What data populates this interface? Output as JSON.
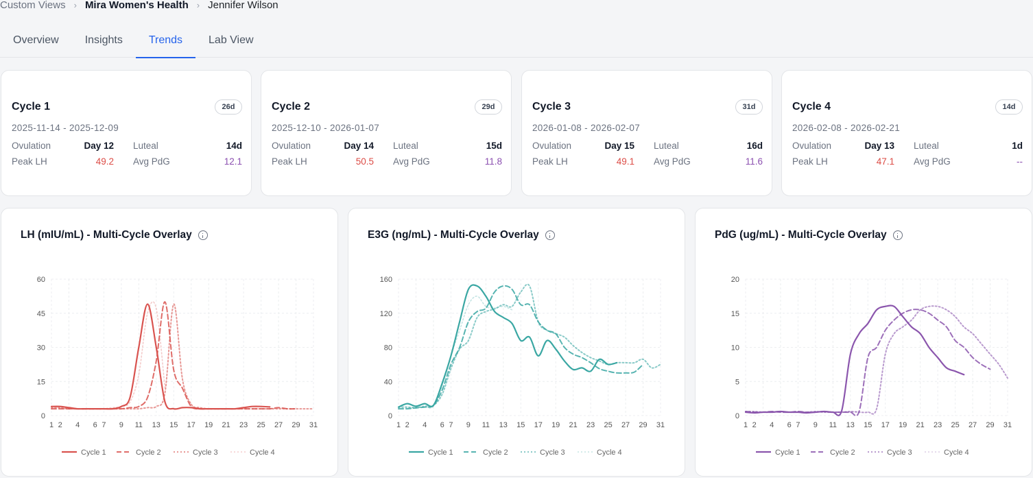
{
  "breadcrumb": {
    "items": [
      "Custom Views",
      "Mira Women's Health",
      "Jennifer Wilson"
    ]
  },
  "tabs": [
    "Overview",
    "Insights",
    "Trends",
    "Lab View"
  ],
  "active_tab": "Trends",
  "colors": {
    "accent": "#2563eb",
    "lh": "#d9534f",
    "e3g": "#3aa7a3",
    "pdg": "#8b56ad",
    "peak_lh_text": "#dc4c46",
    "avg_pdg_text": "#8b4fb0"
  },
  "cycles": [
    {
      "title": "Cycle 1",
      "badge": "26d",
      "range": "2025-11-14 - 2025-12-09",
      "ovulation_label": "Ovulation",
      "ovulation": "Day 12",
      "luteal_label": "Luteal",
      "luteal": "14d",
      "peak_lh_label": "Peak LH",
      "peak_lh": "49.2",
      "avg_pdg_label": "Avg PdG",
      "avg_pdg": "12.1"
    },
    {
      "title": "Cycle 2",
      "badge": "29d",
      "range": "2025-12-10 - 2026-01-07",
      "ovulation_label": "Ovulation",
      "ovulation": "Day 14",
      "luteal_label": "Luteal",
      "luteal": "15d",
      "peak_lh_label": "Peak LH",
      "peak_lh": "50.5",
      "avg_pdg_label": "Avg PdG",
      "avg_pdg": "11.8"
    },
    {
      "title": "Cycle 3",
      "badge": "31d",
      "range": "2026-01-08 - 2026-02-07",
      "ovulation_label": "Ovulation",
      "ovulation": "Day 15",
      "luteal_label": "Luteal",
      "luteal": "16d",
      "peak_lh_label": "Peak LH",
      "peak_lh": "49.1",
      "avg_pdg_label": "Avg PdG",
      "avg_pdg": "11.6"
    },
    {
      "title": "Cycle 4",
      "badge": "14d",
      "range": "2026-02-08 - 2026-02-21",
      "ovulation_label": "Ovulation",
      "ovulation": "Day 13",
      "luteal_label": "Luteal",
      "luteal": "1d",
      "peak_lh_label": "Peak LH",
      "peak_lh": "47.1",
      "avg_pdg_label": "Avg PdG",
      "avg_pdg": "--"
    }
  ],
  "chart_data": [
    {
      "type": "line",
      "title": "LH (mIU/mL) - Multi-Cycle Overlay",
      "color": "#d9534f",
      "info_icon": "info-icon",
      "grid": true,
      "legend": "bottom",
      "xlim": [
        1,
        31
      ],
      "ylim": [
        0,
        60
      ],
      "xticks": [
        1,
        2,
        4,
        6,
        7,
        9,
        11,
        13,
        15,
        17,
        19,
        21,
        23,
        25,
        27,
        29,
        31
      ],
      "yticks": [
        0,
        15,
        30,
        45,
        60
      ],
      "series": [
        {
          "name": "Cycle 1",
          "style": "solid",
          "x": [
            1,
            2,
            3,
            4,
            5,
            6,
            7,
            8,
            9,
            10,
            11,
            12,
            13,
            14,
            15,
            16,
            17,
            18,
            19,
            20,
            21,
            22,
            23,
            24,
            25,
            26
          ],
          "values": [
            4,
            4,
            3.5,
            3,
            3,
            3,
            3,
            3,
            4,
            8,
            30,
            49,
            30,
            6,
            3,
            3.5,
            3.5,
            3,
            3,
            3,
            3,
            3,
            3.5,
            4,
            4,
            3.8
          ]
        },
        {
          "name": "Cycle 2",
          "style": "dashed",
          "x": [
            1,
            2,
            3,
            4,
            5,
            6,
            7,
            8,
            9,
            10,
            11,
            12,
            13,
            14,
            15,
            16,
            17,
            18,
            19,
            20,
            21,
            22,
            23,
            24,
            25,
            26,
            27,
            28,
            29
          ],
          "values": [
            3,
            3,
            3,
            3,
            3,
            3,
            3,
            3,
            3,
            3.5,
            4,
            8,
            24,
            50,
            20,
            12,
            4,
            3,
            3,
            3,
            3,
            3,
            3,
            3,
            3,
            3,
            3.5,
            3,
            3
          ]
        },
        {
          "name": "Cycle 3",
          "style": "dotted",
          "x": [
            1,
            2,
            3,
            4,
            5,
            6,
            7,
            8,
            9,
            10,
            11,
            12,
            13,
            14,
            15,
            16,
            17,
            18,
            19,
            20,
            21,
            22,
            23,
            24,
            25,
            26,
            27,
            28,
            29,
            30,
            31
          ],
          "values": [
            3.5,
            3.5,
            3,
            3,
            3,
            3,
            3,
            3,
            3,
            3,
            3,
            3.5,
            4,
            10,
            49,
            16,
            5,
            3.5,
            3,
            3,
            3,
            3,
            3,
            3,
            3,
            3,
            3,
            3,
            3,
            3,
            3
          ]
        },
        {
          "name": "Cycle 4",
          "style": "faint-dotted",
          "x": [
            1,
            2,
            3,
            4,
            5,
            6,
            7,
            8,
            9,
            10,
            11,
            12,
            13,
            14
          ],
          "values": [
            3,
            3,
            3,
            3,
            3,
            3,
            3,
            3.5,
            4,
            6,
            18,
            45,
            47,
            12
          ]
        }
      ]
    },
    {
      "type": "line",
      "title": "E3G (ng/mL) - Multi-Cycle Overlay",
      "color": "#3aa7a3",
      "info_icon": "info-icon",
      "grid": true,
      "legend": "bottom",
      "xlim": [
        1,
        31
      ],
      "ylim": [
        0,
        160
      ],
      "xticks": [
        1,
        2,
        4,
        6,
        7,
        9,
        11,
        13,
        15,
        17,
        19,
        21,
        23,
        25,
        27,
        29,
        31
      ],
      "yticks": [
        0,
        40,
        80,
        120,
        160
      ],
      "series": [
        {
          "name": "Cycle 1",
          "style": "solid",
          "x": [
            1,
            2,
            3,
            4,
            5,
            6,
            7,
            8,
            9,
            10,
            11,
            12,
            13,
            14,
            15,
            16,
            17,
            18,
            19,
            20,
            21,
            22,
            23,
            24,
            25,
            26
          ],
          "values": [
            10,
            14,
            11,
            14,
            12,
            38,
            70,
            110,
            148,
            152,
            140,
            122,
            115,
            108,
            88,
            92,
            70,
            88,
            78,
            64,
            54,
            56,
            52,
            66,
            60,
            62
          ]
        },
        {
          "name": "Cycle 2",
          "style": "dashed",
          "x": [
            1,
            2,
            3,
            4,
            5,
            6,
            7,
            8,
            9,
            10,
            11,
            12,
            13,
            14,
            15,
            16,
            17,
            18,
            19,
            20,
            21,
            22,
            23,
            24,
            25,
            26,
            27,
            28,
            29
          ],
          "values": [
            8,
            8,
            9,
            10,
            12,
            30,
            60,
            80,
            110,
            122,
            126,
            145,
            152,
            148,
            130,
            130,
            110,
            100,
            96,
            80,
            72,
            68,
            62,
            55,
            52,
            50,
            50,
            51,
            60
          ]
        },
        {
          "name": "Cycle 3",
          "style": "dotted",
          "x": [
            1,
            2,
            3,
            4,
            5,
            6,
            7,
            8,
            9,
            10,
            11,
            12,
            13,
            14,
            15,
            16,
            17,
            18,
            19,
            20,
            21,
            22,
            23,
            24,
            25,
            26,
            27,
            28,
            29,
            30,
            31
          ],
          "values": [
            10,
            10,
            9,
            11,
            12,
            25,
            55,
            78,
            88,
            115,
            122,
            125,
            130,
            128,
            145,
            152,
            110,
            100,
            96,
            92,
            82,
            74,
            68,
            64,
            60,
            62,
            62,
            62,
            66,
            56,
            60
          ]
        },
        {
          "name": "Cycle 4",
          "style": "faint-dotted",
          "x": [
            1,
            2,
            3,
            4,
            5,
            6,
            7,
            8,
            9,
            10,
            11,
            12,
            13,
            14
          ],
          "values": [
            9,
            9,
            10,
            10,
            11,
            35,
            70,
            100,
            130,
            140,
            128,
            126,
            128,
            124
          ]
        }
      ]
    },
    {
      "type": "line",
      "title": "PdG (ug/mL) - Multi-Cycle Overlay",
      "color": "#8b56ad",
      "info_icon": "info-icon",
      "grid": true,
      "legend": "bottom",
      "xlim": [
        1,
        31
      ],
      "ylim": [
        0,
        20
      ],
      "xticks": [
        1,
        2,
        4,
        6,
        7,
        9,
        11,
        13,
        15,
        17,
        19,
        21,
        23,
        25,
        27,
        29,
        31
      ],
      "yticks": [
        0,
        5,
        10,
        15,
        20
      ],
      "series": [
        {
          "name": "Cycle 1",
          "style": "solid",
          "x": [
            1,
            2,
            3,
            4,
            5,
            6,
            7,
            8,
            9,
            10,
            11,
            12,
            13,
            14,
            15,
            16,
            17,
            18,
            19,
            20,
            21,
            22,
            23,
            24,
            25,
            26
          ],
          "values": [
            0.5,
            0.4,
            0.5,
            0.5,
            0.6,
            0.5,
            0.5,
            0.4,
            0.5,
            0.6,
            0.5,
            0.7,
            9,
            12,
            13.5,
            15.5,
            16,
            16,
            14.5,
            13,
            12,
            10,
            8.5,
            7,
            6.5,
            6
          ]
        },
        {
          "name": "Cycle 2",
          "style": "dashed",
          "x": [
            1,
            2,
            3,
            4,
            5,
            6,
            7,
            8,
            9,
            10,
            11,
            12,
            13,
            14,
            15,
            16,
            17,
            18,
            19,
            20,
            21,
            22,
            23,
            24,
            25,
            26,
            27,
            28,
            29
          ],
          "values": [
            0.6,
            0.5,
            0.5,
            0.6,
            0.5,
            0.5,
            0.6,
            0.5,
            0.5,
            0.6,
            0.5,
            0.5,
            0.5,
            0.6,
            8.5,
            10,
            12.5,
            14,
            15,
            15.5,
            15.5,
            15,
            14,
            13,
            11,
            10,
            8.5,
            7.5,
            6.8
          ]
        },
        {
          "name": "Cycle 3",
          "style": "dotted",
          "x": [
            1,
            2,
            3,
            4,
            5,
            6,
            7,
            8,
            9,
            10,
            11,
            12,
            13,
            14,
            15,
            16,
            17,
            18,
            19,
            20,
            21,
            22,
            23,
            24,
            25,
            26,
            27,
            28,
            29,
            30,
            31
          ],
          "values": [
            0.6,
            0.6,
            0.5,
            0.5,
            0.6,
            0.5,
            0.5,
            0.5,
            0.6,
            0.5,
            0.5,
            0.5,
            0.6,
            0.5,
            0.5,
            1,
            9,
            12,
            13,
            14,
            15.5,
            16,
            16,
            15.5,
            14.5,
            13,
            12,
            10.5,
            9,
            7.5,
            5.5
          ]
        },
        {
          "name": "Cycle 4",
          "style": "faint-dotted",
          "x": [
            1,
            2,
            3,
            4,
            5,
            6,
            7,
            8,
            9,
            10,
            11,
            12,
            13,
            14
          ],
          "values": [
            0.5,
            0.5,
            0.5,
            0.5,
            0.5,
            0.5,
            0.5,
            0.5,
            0.5,
            0.5,
            0.5,
            0.5,
            0.5,
            0.6
          ]
        }
      ]
    }
  ]
}
